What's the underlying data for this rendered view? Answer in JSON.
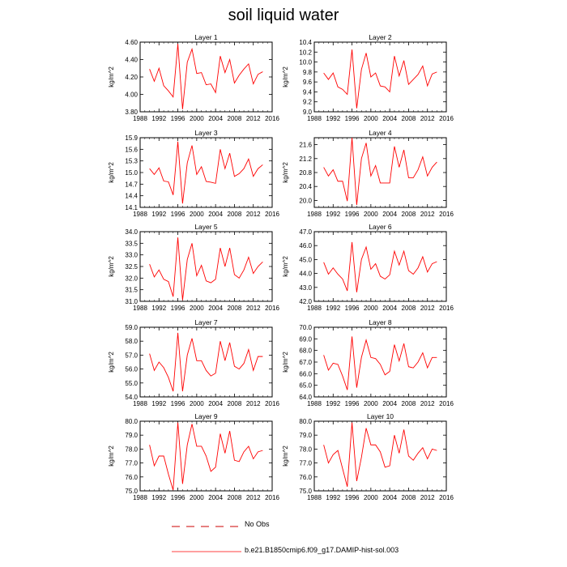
{
  "figure": {
    "title": "soil liquid water",
    "legend": [
      {
        "label": "No Obs",
        "color": "#cc0000",
        "style": "dashed"
      },
      {
        "label": "b.e21.B1850cmip6.f09_g17.DAMIP-hist-sol.003",
        "color": "#ff0000",
        "style": "solid"
      }
    ]
  },
  "colors": {
    "series": "#ff0000",
    "axis": "#000000",
    "obs": "#cc0000"
  },
  "chart_data": [
    {
      "type": "line",
      "title": "Layer 1",
      "ylabel": "kg/m^2",
      "xlim": [
        1988,
        2016
      ],
      "xticks": [
        1988,
        1992,
        1996,
        2000,
        2004,
        2008,
        2012,
        2016
      ],
      "ylim": [
        3.8,
        4.6
      ],
      "yticks": [
        "3.80",
        "4.00",
        "4.20",
        "4.40",
        "4.60"
      ],
      "x": [
        1990,
        1991,
        1992,
        1993,
        1994,
        1995,
        1996,
        1997,
        1998,
        1999,
        2000,
        2001,
        2002,
        2003,
        2004,
        2005,
        2006,
        2007,
        2008,
        2009,
        2010,
        2011,
        2012,
        2013,
        2014
      ],
      "series": [
        {
          "values": [
            4.29,
            4.15,
            4.3,
            4.1,
            4.04,
            3.97,
            4.58,
            3.83,
            4.37,
            4.52,
            4.24,
            4.25,
            4.11,
            4.12,
            4.02,
            4.44,
            4.25,
            4.4,
            4.13,
            4.22,
            4.29,
            4.35,
            4.12,
            4.23,
            4.26
          ]
        }
      ]
    },
    {
      "type": "line",
      "title": "Layer 2",
      "ylabel": "kg/m^2",
      "xlim": [
        1988,
        2016
      ],
      "xticks": [
        1988,
        1992,
        1996,
        2000,
        2004,
        2008,
        2012,
        2016
      ],
      "ylim": [
        9.0,
        10.4
      ],
      "yticks": [
        "9.0",
        "9.2",
        "9.4",
        "9.6",
        "9.8",
        "10.0",
        "10.2",
        "10.4"
      ],
      "x": [
        1990,
        1991,
        1992,
        1993,
        1994,
        1995,
        1996,
        1997,
        1998,
        1999,
        2000,
        2001,
        2002,
        2003,
        2004,
        2005,
        2006,
        2007,
        2008,
        2009,
        2010,
        2011,
        2012,
        2013,
        2014
      ],
      "series": [
        {
          "values": [
            9.78,
            9.65,
            9.78,
            9.5,
            9.45,
            9.35,
            10.25,
            9.07,
            9.85,
            10.18,
            9.7,
            9.78,
            9.52,
            9.5,
            9.4,
            10.12,
            9.72,
            10.03,
            9.55,
            9.65,
            9.75,
            9.92,
            9.52,
            9.76,
            9.8
          ]
        }
      ]
    },
    {
      "type": "line",
      "title": "Layer 3",
      "ylabel": "kg/m^2",
      "xlim": [
        1988,
        2016
      ],
      "xticks": [
        1988,
        1992,
        1996,
        2000,
        2004,
        2008,
        2012,
        2016
      ],
      "ylim": [
        14.1,
        15.9
      ],
      "yticks": [
        "14.1",
        "14.4",
        "14.7",
        "15.0",
        "15.3",
        "15.6",
        "15.9"
      ],
      "x": [
        1990,
        1991,
        1992,
        1993,
        1994,
        1995,
        1996,
        1997,
        1998,
        1999,
        2000,
        2001,
        2002,
        2003,
        2004,
        2005,
        2006,
        2007,
        2008,
        2009,
        2010,
        2011,
        2012,
        2013,
        2014
      ],
      "series": [
        {
          "values": [
            15.1,
            14.95,
            15.12,
            14.78,
            14.76,
            14.42,
            15.8,
            14.2,
            15.25,
            15.7,
            14.95,
            15.15,
            14.77,
            14.75,
            14.72,
            15.6,
            15.1,
            15.5,
            14.9,
            14.97,
            15.1,
            15.35,
            14.9,
            15.1,
            15.2
          ]
        }
      ]
    },
    {
      "type": "line",
      "title": "Layer 4",
      "ylabel": "kg/m^2",
      "xlim": [
        1988,
        2016
      ],
      "xticks": [
        1988,
        1992,
        1996,
        2000,
        2004,
        2008,
        2012,
        2016
      ],
      "ylim": [
        19.8,
        21.8
      ],
      "yticks": [
        "20.0",
        "20.4",
        "20.8",
        "21.2",
        "21.6"
      ],
      "x": [
        1990,
        1991,
        1992,
        1993,
        1994,
        1995,
        1996,
        1997,
        1998,
        1999,
        2000,
        2001,
        2002,
        2003,
        2004,
        2005,
        2006,
        2007,
        2008,
        2009,
        2010,
        2011,
        2012,
        2013,
        2014
      ],
      "series": [
        {
          "values": [
            20.95,
            20.7,
            20.88,
            20.55,
            20.55,
            19.98,
            21.8,
            19.87,
            21.2,
            21.65,
            20.7,
            21.0,
            20.5,
            20.5,
            20.5,
            21.55,
            20.95,
            21.45,
            20.65,
            20.65,
            20.88,
            21.25,
            20.7,
            20.95,
            21.1
          ]
        }
      ]
    },
    {
      "type": "line",
      "title": "Layer 5",
      "ylabel": "kg/m^2",
      "xlim": [
        1988,
        2016
      ],
      "xticks": [
        1988,
        1992,
        1996,
        2000,
        2004,
        2008,
        2012,
        2016
      ],
      "ylim": [
        31.0,
        34.0
      ],
      "yticks": [
        "31.0",
        "31.5",
        "32.0",
        "32.5",
        "33.0",
        "33.5",
        "34.0"
      ],
      "x": [
        1990,
        1991,
        1992,
        1993,
        1994,
        1995,
        1996,
        1997,
        1998,
        1999,
        2000,
        2001,
        2002,
        2003,
        2004,
        2005,
        2006,
        2007,
        2008,
        2009,
        2010,
        2011,
        2012,
        2013,
        2014
      ],
      "series": [
        {
          "values": [
            32.6,
            32.05,
            32.35,
            31.95,
            31.85,
            31.2,
            33.75,
            31.05,
            32.8,
            33.5,
            32.1,
            32.55,
            31.88,
            31.8,
            31.95,
            33.3,
            32.5,
            33.3,
            32.15,
            32.0,
            32.35,
            32.9,
            32.2,
            32.5,
            32.7
          ]
        }
      ]
    },
    {
      "type": "line",
      "title": "Layer 6",
      "ylabel": "kg/m^2",
      "xlim": [
        1988,
        2016
      ],
      "xticks": [
        1988,
        1992,
        1996,
        2000,
        2004,
        2008,
        2012,
        2016
      ],
      "ylim": [
        42.0,
        47.0
      ],
      "yticks": [
        "42.0",
        "43.0",
        "44.0",
        "45.0",
        "46.0",
        "47.0"
      ],
      "x": [
        1990,
        1991,
        1992,
        1993,
        1994,
        1995,
        1996,
        1997,
        1998,
        1999,
        2000,
        2001,
        2002,
        2003,
        2004,
        2005,
        2006,
        2007,
        2008,
        2009,
        2010,
        2011,
        2012,
        2013,
        2014
      ],
      "series": [
        {
          "values": [
            44.8,
            43.95,
            44.4,
            43.95,
            43.6,
            42.75,
            46.25,
            42.65,
            45.0,
            45.9,
            44.3,
            44.7,
            43.8,
            43.6,
            43.9,
            45.6,
            44.6,
            45.6,
            44.2,
            43.95,
            44.4,
            45.2,
            44.1,
            44.7,
            44.85
          ]
        }
      ]
    },
    {
      "type": "line",
      "title": "Layer 7",
      "ylabel": "kg/m^2",
      "xlim": [
        1988,
        2016
      ],
      "xticks": [
        1988,
        1992,
        1996,
        2000,
        2004,
        2008,
        2012,
        2016
      ],
      "ylim": [
        54.0,
        59.0
      ],
      "yticks": [
        "54.0",
        "55.0",
        "56.0",
        "57.0",
        "58.0",
        "59.0"
      ],
      "x": [
        1990,
        1991,
        1992,
        1993,
        1994,
        1995,
        1996,
        1997,
        1998,
        1999,
        2000,
        2001,
        2002,
        2003,
        2004,
        2005,
        2006,
        2007,
        2008,
        2009,
        2010,
        2011,
        2012,
        2013,
        2014
      ],
      "series": [
        {
          "values": [
            57.1,
            55.9,
            56.5,
            56.1,
            55.4,
            54.4,
            58.6,
            54.4,
            57.0,
            58.2,
            56.6,
            56.6,
            55.9,
            55.5,
            55.7,
            58.0,
            56.6,
            57.9,
            56.2,
            56.0,
            56.4,
            57.4,
            55.9,
            56.9,
            56.9
          ]
        }
      ]
    },
    {
      "type": "line",
      "title": "Layer 8",
      "ylabel": "kg/m^2",
      "xlim": [
        1988,
        2016
      ],
      "xticks": [
        1988,
        1992,
        1996,
        2000,
        2004,
        2008,
        2012,
        2016
      ],
      "ylim": [
        64.0,
        70.0
      ],
      "yticks": [
        "64.0",
        "65.0",
        "66.0",
        "67.0",
        "68.0",
        "69.0",
        "70.0"
      ],
      "x": [
        1990,
        1991,
        1992,
        1993,
        1994,
        1995,
        1996,
        1997,
        1998,
        1999,
        2000,
        2001,
        2002,
        2003,
        2004,
        2005,
        2006,
        2007,
        2008,
        2009,
        2010,
        2011,
        2012,
        2013,
        2014
      ],
      "series": [
        {
          "values": [
            67.6,
            66.3,
            66.9,
            66.8,
            65.8,
            64.6,
            69.2,
            64.8,
            67.4,
            68.9,
            67.4,
            67.3,
            66.8,
            65.9,
            66.2,
            68.5,
            67.1,
            68.6,
            66.6,
            66.5,
            67.0,
            67.8,
            66.5,
            67.4,
            67.4
          ]
        }
      ]
    },
    {
      "type": "line",
      "title": "Layer 9",
      "ylabel": "kg/m^2",
      "xlim": [
        1988,
        2016
      ],
      "xticks": [
        1988,
        1992,
        1996,
        2000,
        2004,
        2008,
        2012,
        2016
      ],
      "ylim": [
        75.0,
        80.0
      ],
      "yticks": [
        "75.0",
        "76.0",
        "77.0",
        "78.0",
        "79.0",
        "80.0"
      ],
      "x": [
        1990,
        1991,
        1992,
        1993,
        1994,
        1995,
        1996,
        1997,
        1998,
        1999,
        2000,
        2001,
        2002,
        2003,
        2004,
        2005,
        2006,
        2007,
        2008,
        2009,
        2010,
        2011,
        2012,
        2013,
        2014
      ],
      "series": [
        {
          "values": [
            78.3,
            76.8,
            77.5,
            77.5,
            76.2,
            75.05,
            79.9,
            75.5,
            78.3,
            79.8,
            78.2,
            78.2,
            77.5,
            76.4,
            76.7,
            79.1,
            77.7,
            79.3,
            77.2,
            77.1,
            77.8,
            78.2,
            77.3,
            77.8,
            77.9
          ]
        }
      ]
    },
    {
      "type": "line",
      "title": "Layer 10",
      "ylabel": "kg/m^2",
      "xlim": [
        1988,
        2016
      ],
      "xticks": [
        1988,
        1992,
        1996,
        2000,
        2004,
        2008,
        2012,
        2016
      ],
      "ylim": [
        75.0,
        80.0
      ],
      "yticks": [
        "75.0",
        "76.0",
        "77.0",
        "78.0",
        "79.0",
        "80.0"
      ],
      "x": [
        1990,
        1991,
        1992,
        1993,
        1994,
        1995,
        1996,
        1997,
        1998,
        1999,
        2000,
        2001,
        2002,
        2003,
        2004,
        2005,
        2006,
        2007,
        2008,
        2009,
        2010,
        2011,
        2012,
        2013,
        2014
      ],
      "series": [
        {
          "values": [
            78.3,
            77.0,
            77.6,
            77.9,
            76.6,
            75.3,
            79.9,
            75.7,
            77.4,
            79.5,
            78.3,
            78.3,
            77.8,
            76.7,
            76.8,
            79.0,
            77.7,
            79.4,
            77.5,
            77.2,
            77.7,
            78.1,
            77.3,
            78.0,
            77.9
          ]
        }
      ]
    }
  ]
}
